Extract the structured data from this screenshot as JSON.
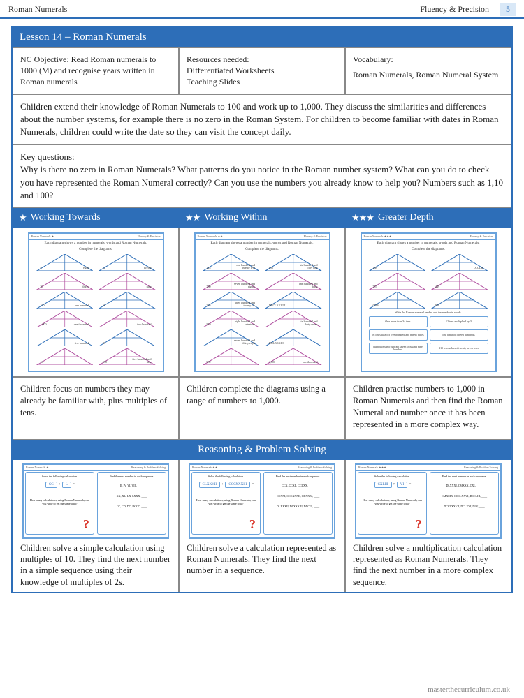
{
  "header": {
    "left": "Roman Numerals",
    "right": "Fluency & Precision",
    "page_num": "5"
  },
  "lesson_title": "Lesson 14 – Roman Numerals",
  "top_cells": {
    "objective": "NC Objective: Read Roman numerals to 1000 (M) and recognise years written in Roman numerals",
    "resources_label": "Resources needed:",
    "resources_1": "Differentiated Worksheets",
    "resources_2": "Teaching Slides",
    "vocab_label": "Vocabulary:",
    "vocab_text": "Roman Numerals, Roman Numeral System"
  },
  "overview": "Children extend their knowledge of Roman Numerals to 100 and work up to 1,000. They discuss the similarities and differences about the number systems, for example there is no zero in the Roman System. For children to become familiar with dates in Roman Numerals, children could write the date  so they can visit the concept daily.",
  "key_questions_label": "Key questions:",
  "key_questions": "Why is there no zero in Roman Numerals? What patterns do you notice in the Roman number system? What can you do to check you have represented the Roman Numeral correctly? Can you use the numbers you already know to help you? Numbers such as 1,10 and 100?",
  "diff": {
    "towards": "Working Towards",
    "within": "Working Within",
    "depth": "Greater Depth",
    "star1": "★",
    "star2": "★★",
    "star3": "★★★"
  },
  "thumb_instruction": "Each diagram shows a number in numerals, words and Roman Numerals.",
  "thumb_complete": "Complete the diagrams.",
  "towards_data": [
    [
      "8",
      "eight",
      "12",
      "twelve"
    ],
    [
      "30",
      "thirty",
      "",
      "nine"
    ],
    [
      "100",
      "one hundred",
      "60",
      ""
    ],
    [
      "1,000",
      "one thousand",
      "",
      "two hundred"
    ],
    [
      "",
      "five hundred",
      "20",
      ""
    ],
    [
      "10",
      "",
      "550",
      "five hundred and fifty"
    ]
  ],
  "within_data": [
    [
      "125",
      "one hundred and twenty five",
      "655",
      "six hundred and fifty five"
    ],
    [
      "780",
      "seven hundred and eighty",
      "",
      "one hundred and forty"
    ],
    [
      "326",
      "three hundred and twenty six",
      "DCCLXXVIII",
      ""
    ],
    [
      "819",
      "eight hundred and nineteen",
      "",
      "six hundred and forty seven"
    ],
    [
      "",
      "seven hundred and thirty eight",
      "DCLXXXIII",
      ""
    ],
    [
      "989",
      "",
      "1,000",
      "one thousand"
    ]
  ],
  "depth_triangles": [
    [
      "168",
      "",
      "",
      "DCCLIII"
    ],
    [
      "787",
      "",
      "449",
      ""
    ],
    [
      "CMV",
      "",
      "858",
      ""
    ]
  ],
  "depth_instruction": "Write the Roman numeral needed and the number in words.",
  "depth_boxes": [
    "One more than 34 tens",
    "12 tens multiplied by 3",
    "98 ones take off five hundred and ninety nines",
    "one tenth of fifteen hundreds",
    "eight thousand subtract seven thousand nine hundred",
    "115 tens subtract twenty seven tens"
  ],
  "desc": {
    "towards": "Children focus on numbers they may already be familiar with, plus multiples of tens.",
    "within": "Children complete the diagrams using a range of numbers to 1,000.",
    "depth": "Children practise numbers to 1,000 in Roman Numerals and then find the Roman Numeral and number once it has been represented in a more complex way."
  },
  "reasoning_title": "Reasoning & Problem Solving",
  "ps": {
    "solve_label": "Solve the following calculation.",
    "seq_label": "Find the next number in each sequence.",
    "how_many": "How many calculations, using Roman Numerals, can you write to get the same total?",
    "t1_calc": [
      "CC",
      "+",
      "L",
      "="
    ],
    "t1_seq": [
      "II, IV, VI, VIII, ____",
      "XX, XL, LX, LXXX, ____",
      "CC, CD, DC, DCCC, ____"
    ],
    "t2_calc": [
      "CLXXVII",
      "+",
      "CCCXXXIII",
      "="
    ],
    "t2_seq": [
      "CCX, CCXL, CCLXX, ____",
      "CCXXI, CCCXXXII, CDXXXI, ____",
      "DLXXXII, DLXXXIII, DXCIII, ____"
    ],
    "t3_calc": [
      "CXLIII",
      "×",
      "VI",
      "="
    ],
    "t3_seq": [
      "DLXXXI, CMXXX, CXL, ____",
      "CMXCIX, CCCLXXVI, DCCLIII, ____",
      "DCCLXXVII, DCLXVI, DLV, ____"
    ]
  },
  "ps_desc": {
    "towards": "Children solve a simple calculation using multiples of 10. They find the next number in a simple sequence using their knowledge of multiples of 2s.",
    "within": "Children solve a calculation represented as Roman Numerals. They find the next number in a sequence.",
    "depth": "Children solve a multiplication calculation represented as Roman Numerals. They find the next number in a more complex sequence."
  },
  "footer": "masterthecurriculum.co.uk",
  "colors": {
    "primary": "#2d6eb8",
    "border": "#888888",
    "accent": "#d93025"
  }
}
